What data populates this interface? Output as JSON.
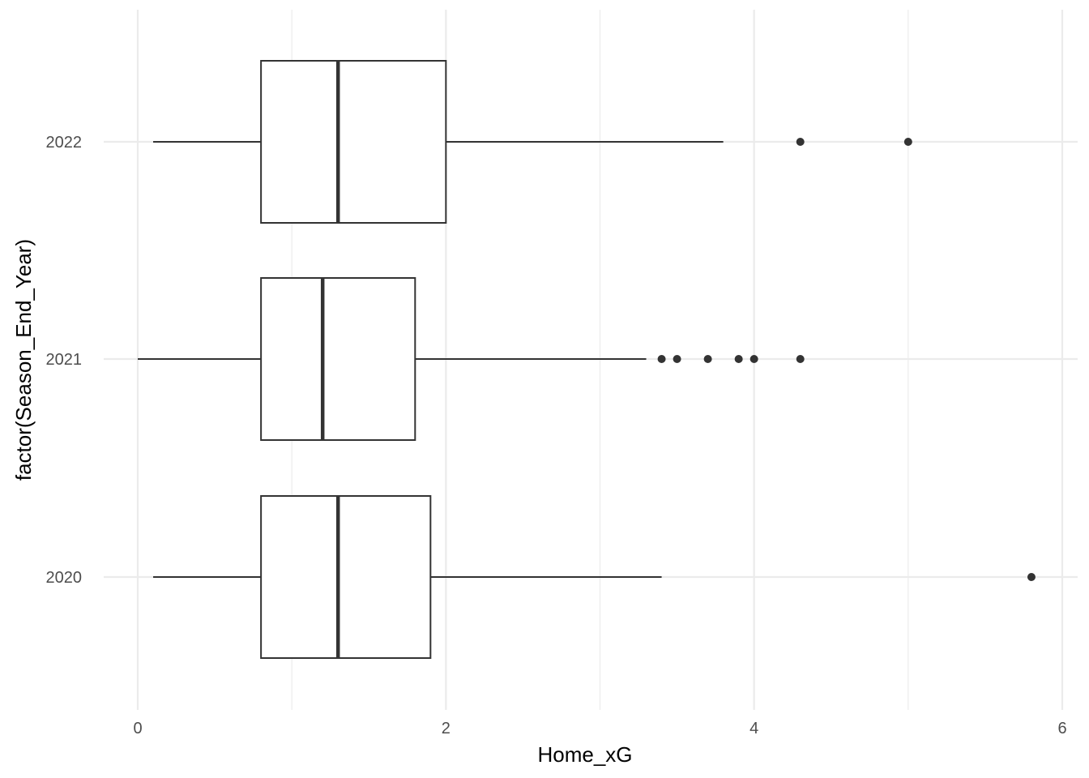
{
  "chart_data": {
    "type": "boxplot",
    "orientation": "horizontal",
    "xlabel": "Home_xG",
    "ylabel": "factor(Season_End_Year)",
    "xlim": [
      -0.05,
      6.1
    ],
    "x_ticks": [
      0,
      2,
      4,
      6
    ],
    "grid": true,
    "colors": {
      "grid_major": "#ebebeb",
      "box_stroke": "#333333",
      "box_fill": "#ffffff"
    },
    "categories": [
      "2020",
      "2021",
      "2022"
    ],
    "boxes": [
      {
        "category": "2020",
        "whisker_low": 0.1,
        "q1": 0.8,
        "median": 1.3,
        "q3": 1.9,
        "whisker_high": 3.4,
        "outliers": [
          5.8
        ]
      },
      {
        "category": "2021",
        "whisker_low": 0.0,
        "q1": 0.8,
        "median": 1.2,
        "q3": 1.8,
        "whisker_high": 3.3,
        "outliers": [
          3.4,
          3.5,
          3.7,
          3.9,
          4.0,
          4.3
        ]
      },
      {
        "category": "2022",
        "whisker_low": 0.1,
        "q1": 0.8,
        "median": 1.3,
        "q3": 2.0,
        "whisker_high": 3.8,
        "outliers": [
          4.3,
          5.0
        ]
      }
    ]
  }
}
